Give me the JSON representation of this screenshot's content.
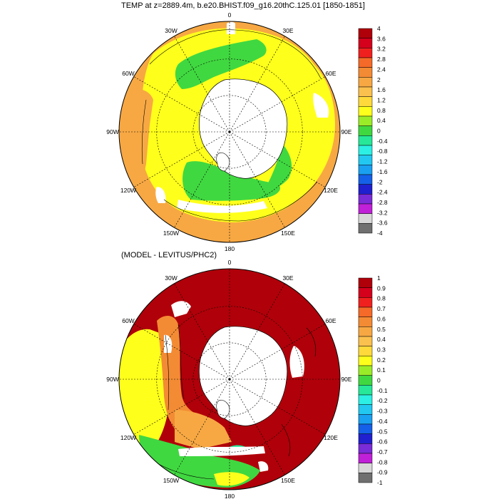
{
  "panels": [
    {
      "title": "TEMP at z=2889.4m, b.e20.BHIST.f09_g16.20thC.125.01 [1850-1851]",
      "longitude_labels": [
        "0",
        "30E",
        "60E",
        "90E",
        "120E",
        "150E",
        "180",
        "150W",
        "120W",
        "90W",
        "60W",
        "30W"
      ],
      "colorbar": {
        "labels": [
          "4",
          "3.6",
          "3.2",
          "2.8",
          "2.4",
          "2",
          "1.6",
          "1.2",
          "0.8",
          "0.4",
          "0",
          "-0.4",
          "-0.8",
          "-1.2",
          "-1.6",
          "-2",
          "-2.4",
          "-2.8",
          "-3.2",
          "-3.6",
          "-4"
        ],
        "colors": [
          "#B0000A",
          "#D4001C",
          "#F0201E",
          "#F56A28",
          "#F38B34",
          "#F7A843",
          "#FBC14E",
          "#FFDA3A",
          "#FFFF1C",
          "#9BEC28",
          "#40D840",
          "#26E898",
          "#2CF0E4",
          "#22C8F0",
          "#1AA0F0",
          "#1560E8",
          "#2020D0",
          "#7A2CD8",
          "#C021D8",
          "#D8D8D8",
          "#707070"
        ]
      }
    },
    {
      "title": "(MODEL - LEVITUS/PHC2)",
      "longitude_labels": [
        "0",
        "30E",
        "60E",
        "90E",
        "120E",
        "150E",
        "180",
        "150W",
        "120W",
        "90W",
        "60W",
        "30W"
      ],
      "colorbar": {
        "labels": [
          "1",
          "0.9",
          "0.8",
          "0.7",
          "0.6",
          "0.5",
          "0.4",
          "0.3",
          "0.2",
          "0.1",
          "0",
          "-0.1",
          "-0.2",
          "-0.3",
          "-0.4",
          "-0.5",
          "-0.6",
          "-0.7",
          "-0.8",
          "-0.9",
          "-1"
        ],
        "colors": [
          "#B0000A",
          "#D4001C",
          "#F0201E",
          "#F56A28",
          "#F38B34",
          "#F7A843",
          "#FBC14E",
          "#FFDA3A",
          "#FFFF1C",
          "#9BEC28",
          "#40D840",
          "#26E898",
          "#2CF0E4",
          "#22C8F0",
          "#1AA0F0",
          "#1560E8",
          "#2020D0",
          "#7A2CD8",
          "#C021D8",
          "#D8D8D8",
          "#707070"
        ]
      }
    }
  ]
}
